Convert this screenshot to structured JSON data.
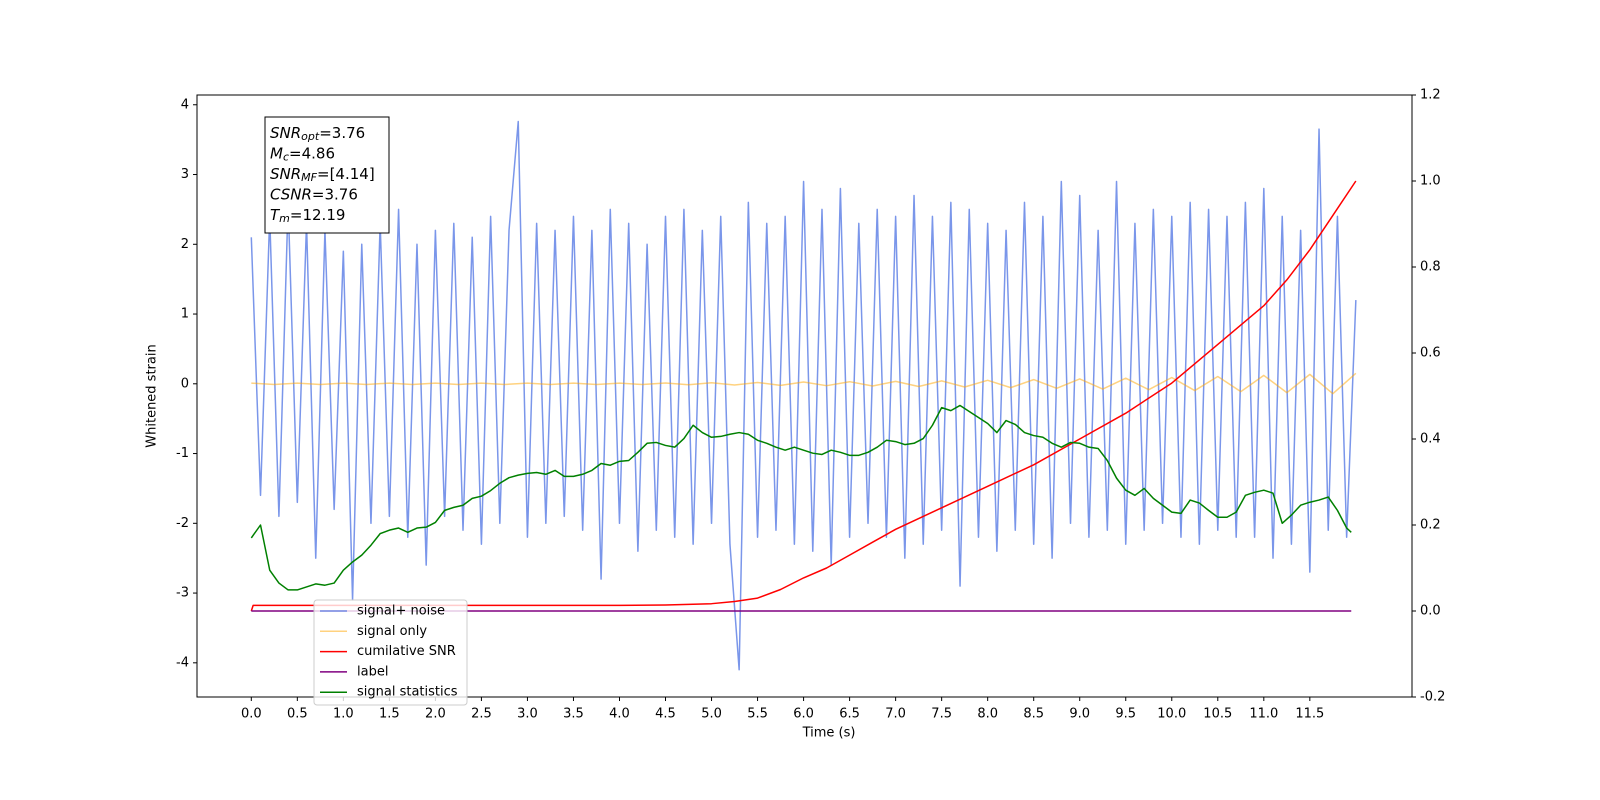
{
  "chart_data": {
    "type": "line",
    "x_label": "Time (s)",
    "y_label": "Whitened strain",
    "xlim": [
      -0.59,
      12.61
    ],
    "ylim": [
      -4.49,
      4.14
    ],
    "y2lim": [
      -0.2,
      1.2
    ],
    "xticks": [
      {
        "value": 0,
        "label": "0.0"
      },
      0.5,
      {
        "value": 1,
        "label": "1.0"
      },
      1.5,
      {
        "value": 2,
        "label": "2.0"
      },
      2.5,
      {
        "value": 3,
        "label": "3.0"
      },
      3.5,
      {
        "value": 4,
        "label": "4.0"
      },
      4.5,
      {
        "value": 5,
        "label": "5.0"
      },
      5.5,
      {
        "value": 6,
        "label": "6.0"
      },
      6.5,
      {
        "value": 7,
        "label": "7.0"
      },
      7.5,
      {
        "value": 8,
        "label": "8.0"
      },
      8.5,
      {
        "value": 9,
        "label": "9.0"
      },
      9.5,
      {
        "value": 10,
        "label": "10.0"
      },
      10.5,
      {
        "value": 11,
        "label": "11.0"
      },
      11.5
    ],
    "yticks": [
      -4,
      -3,
      -2,
      -1,
      0,
      1,
      2,
      3,
      4
    ],
    "y2ticks": [
      -0.2,
      {
        "value": 0,
        "label": "0.0"
      },
      0.2,
      0.4,
      0.6,
      0.8,
      {
        "value": 1,
        "label": "1.0"
      },
      1.2
    ],
    "grid": false,
    "legend": "lower left",
    "stats_box": [
      {
        "symbol": "SNR",
        "subscript": "opt",
        "text": "=3.76"
      },
      {
        "symbol": "M",
        "subscript": "c",
        "text": "=4.86"
      },
      {
        "symbol": "SNR",
        "subscript": "MF",
        "text": "=[4.14]"
      },
      {
        "symbol": "CSNR",
        "subscript": null,
        "text": "=3.76"
      },
      {
        "symbol": "T",
        "subscript": "m",
        "text": "=12.19"
      }
    ],
    "series": [
      {
        "name": "signal+ noise",
        "color": "#4169e1",
        "alpha": 0.7,
        "axis": "y",
        "x": [
          0,
          0.1,
          0.2,
          0.3,
          0.4,
          0.5,
          0.6,
          0.7,
          0.8,
          0.9,
          1,
          1.1,
          1.2,
          1.3,
          1.4,
          1.5,
          1.6,
          1.7,
          1.8,
          1.9,
          2,
          2.1,
          2.2,
          2.3,
          2.4,
          2.5,
          2.6,
          2.7,
          2.8,
          2.9,
          3,
          3.1,
          3.2,
          3.3,
          3.4,
          3.5,
          3.6,
          3.7,
          3.8,
          3.9,
          4,
          4.1,
          4.2,
          4.3,
          4.4,
          4.5,
          4.6,
          4.7,
          4.8,
          4.9,
          5,
          5.1,
          5.2,
          5.3,
          5.4,
          5.5,
          5.6,
          5.7,
          5.8,
          5.9,
          6,
          6.1,
          6.2,
          6.3,
          6.4,
          6.5,
          6.6,
          6.7,
          6.8,
          6.9,
          7,
          7.1,
          7.2,
          7.3,
          7.4,
          7.5,
          7.6,
          7.7,
          7.8,
          7.9,
          8,
          8.1,
          8.2,
          8.3,
          8.4,
          8.5,
          8.6,
          8.7,
          8.8,
          8.9,
          9,
          9.1,
          9.2,
          9.3,
          9.4,
          9.5,
          9.6,
          9.7,
          9.8,
          9.9,
          10,
          10.1,
          10.2,
          10.3,
          10.4,
          10.5,
          10.6,
          10.7,
          10.8,
          10.9,
          11,
          11.1,
          11.2,
          11.3,
          11.4,
          11.5,
          11.6,
          11.7,
          11.8,
          11.9,
          12
        ],
        "values": [
          2.1,
          -1.6,
          2.4,
          -1.9,
          2.6,
          -1.7,
          2.3,
          -2.5,
          2.2,
          -1.8,
          1.9,
          -3.1,
          2.0,
          -2.0,
          2.3,
          -1.9,
          2.5,
          -2.2,
          2.0,
          -2.6,
          2.2,
          -1.9,
          2.3,
          -2.1,
          2.1,
          -2.3,
          2.4,
          -2.0,
          2.2,
          3.76,
          -2.2,
          2.3,
          -2.0,
          2.2,
          -1.9,
          2.4,
          -2.1,
          2.2,
          -2.8,
          2.5,
          -2.0,
          2.3,
          -2.4,
          2.0,
          -2.1,
          2.4,
          -2.2,
          2.5,
          -2.3,
          2.2,
          -2.0,
          2.4,
          -2.3,
          -4.1,
          2.6,
          -2.2,
          2.3,
          -2.1,
          2.4,
          -2.3,
          2.9,
          -2.4,
          2.5,
          -2.6,
          2.8,
          -2.2,
          2.3,
          -2.0,
          2.5,
          -2.2,
          2.4,
          -2.5,
          2.7,
          -2.3,
          2.4,
          -2.1,
          2.6,
          -2.9,
          2.5,
          -2.2,
          2.3,
          -2.4,
          2.2,
          -2.1,
          2.6,
          -2.3,
          2.4,
          -2.5,
          2.9,
          -2.0,
          2.7,
          -2.2,
          2.2,
          -2.1,
          2.9,
          -2.3,
          2.3,
          -2.1,
          2.5,
          -2.0,
          2.4,
          -2.2,
          2.6,
          -2.3,
          2.5,
          -2.1,
          2.4,
          -2.2,
          2.6,
          -2.2,
          2.8,
          -2.5,
          2.4,
          -2.3,
          2.2,
          -2.7,
          3.65,
          -2.1,
          2.4,
          -2.2,
          1.2
        ]
      },
      {
        "name": "signal only",
        "color": "#ffa500",
        "alpha": 0.5,
        "axis": "y",
        "x": [
          0,
          0.25,
          0.5,
          0.75,
          1,
          1.25,
          1.5,
          1.75,
          2,
          2.25,
          2.5,
          2.75,
          3,
          3.25,
          3.5,
          3.75,
          4,
          4.25,
          4.5,
          4.75,
          5,
          5.25,
          5.5,
          5.75,
          6,
          6.25,
          6.5,
          6.75,
          7,
          7.25,
          7.5,
          7.75,
          8,
          8.25,
          8.5,
          8.75,
          9,
          9.25,
          9.5,
          9.75,
          10,
          10.25,
          10.5,
          10.75,
          11,
          11.25,
          11.5,
          11.75,
          12
        ],
        "values": [
          0.01,
          -0.01,
          0.01,
          -0.01,
          0.01,
          -0.01,
          0.01,
          -0.01,
          0.01,
          -0.01,
          0.01,
          -0.01,
          0.01,
          -0.01,
          0.01,
          -0.01,
          0.01,
          -0.011,
          0.012,
          -0.013,
          0.015,
          -0.017,
          0.019,
          -0.022,
          0.025,
          -0.027,
          0.03,
          -0.032,
          0.035,
          -0.039,
          0.042,
          -0.046,
          0.05,
          -0.055,
          0.06,
          -0.065,
          0.07,
          -0.075,
          0.08,
          -0.085,
          0.09,
          -0.097,
          0.105,
          -0.112,
          0.12,
          -0.127,
          0.135,
          -0.142,
          0.15
        ]
      },
      {
        "name": "cumilative SNR",
        "color": "#ff0000",
        "alpha": 1,
        "axis": "y2",
        "x": [
          0,
          0.02,
          1,
          2,
          3,
          4,
          4.5,
          5,
          5.25,
          5.5,
          5.75,
          6,
          6.25,
          6.5,
          6.75,
          7,
          7.5,
          8,
          8.5,
          9,
          9.5,
          10,
          10.5,
          11,
          11.25,
          11.5,
          11.75,
          12
        ],
        "values": [
          0,
          0.013,
          0.013,
          0.013,
          0.013,
          0.013,
          0.014,
          0.017,
          0.022,
          0.03,
          0.05,
          0.077,
          0.1,
          0.13,
          0.16,
          0.19,
          0.24,
          0.29,
          0.34,
          0.4,
          0.46,
          0.53,
          0.62,
          0.71,
          0.77,
          0.84,
          0.92,
          1.0
        ]
      },
      {
        "name": "label",
        "color": "#800080",
        "alpha": 1,
        "axis": "y2",
        "x": [
          0,
          11.95
        ],
        "values": [
          0,
          0
        ]
      },
      {
        "name": "signal statistics",
        "color": "#008000",
        "alpha": 1,
        "axis": "y2",
        "x": [
          0,
          0.1,
          0.2,
          0.3,
          0.4,
          0.5,
          0.6,
          0.7,
          0.8,
          0.9,
          1,
          1.1,
          1.2,
          1.3,
          1.4,
          1.5,
          1.6,
          1.7,
          1.8,
          1.9,
          2,
          2.1,
          2.2,
          2.3,
          2.4,
          2.5,
          2.6,
          2.7,
          2.8,
          2.9,
          3,
          3.1,
          3.2,
          3.3,
          3.4,
          3.5,
          3.6,
          3.7,
          3.8,
          3.9,
          4,
          4.1,
          4.2,
          4.3,
          4.4,
          4.5,
          4.6,
          4.7,
          4.8,
          4.9,
          5,
          5.1,
          5.2,
          5.3,
          5.4,
          5.5,
          5.6,
          5.7,
          5.8,
          5.9,
          6,
          6.1,
          6.2,
          6.3,
          6.4,
          6.5,
          6.6,
          6.7,
          6.8,
          6.9,
          7,
          7.1,
          7.2,
          7.3,
          7.4,
          7.5,
          7.6,
          7.7,
          7.8,
          7.9,
          8,
          8.1,
          8.2,
          8.3,
          8.4,
          8.5,
          8.6,
          8.7,
          8.8,
          8.9,
          9,
          9.1,
          9.2,
          9.3,
          9.4,
          9.5,
          9.6,
          9.7,
          9.8,
          9.9,
          10,
          10.1,
          10.2,
          10.3,
          10.4,
          10.5,
          10.6,
          10.7,
          10.8,
          10.9,
          11,
          11.1,
          11.2,
          11.3,
          11.4,
          11.5,
          11.6,
          11.7,
          11.8,
          11.9,
          11.95
        ],
        "values": [
          0.17,
          0.2,
          0.095,
          0.065,
          0.049,
          0.049,
          0.056,
          0.063,
          0.06,
          0.065,
          0.095,
          0.114,
          0.13,
          0.153,
          0.18,
          0.188,
          0.193,
          0.183,
          0.193,
          0.195,
          0.206,
          0.234,
          0.241,
          0.246,
          0.262,
          0.267,
          0.28,
          0.297,
          0.31,
          0.316,
          0.32,
          0.322,
          0.318,
          0.327,
          0.313,
          0.313,
          0.318,
          0.327,
          0.343,
          0.339,
          0.348,
          0.35,
          0.369,
          0.39,
          0.392,
          0.385,
          0.381,
          0.401,
          0.432,
          0.415,
          0.404,
          0.406,
          0.411,
          0.415,
          0.411,
          0.397,
          0.39,
          0.381,
          0.374,
          0.381,
          0.374,
          0.367,
          0.364,
          0.374,
          0.369,
          0.362,
          0.362,
          0.369,
          0.381,
          0.397,
          0.394,
          0.387,
          0.39,
          0.401,
          0.432,
          0.473,
          0.466,
          0.478,
          0.464,
          0.45,
          0.436,
          0.415,
          0.443,
          0.434,
          0.415,
          0.408,
          0.404,
          0.39,
          0.381,
          0.392,
          0.39,
          0.381,
          0.378,
          0.35,
          0.309,
          0.281,
          0.269,
          0.285,
          0.262,
          0.246,
          0.23,
          0.227,
          0.258,
          0.251,
          0.234,
          0.218,
          0.218,
          0.23,
          0.269,
          0.276,
          0.281,
          0.274,
          0.204,
          0.223,
          0.246,
          0.253,
          0.258,
          0.265,
          0.234,
          0.193,
          0.183
        ]
      }
    ]
  }
}
